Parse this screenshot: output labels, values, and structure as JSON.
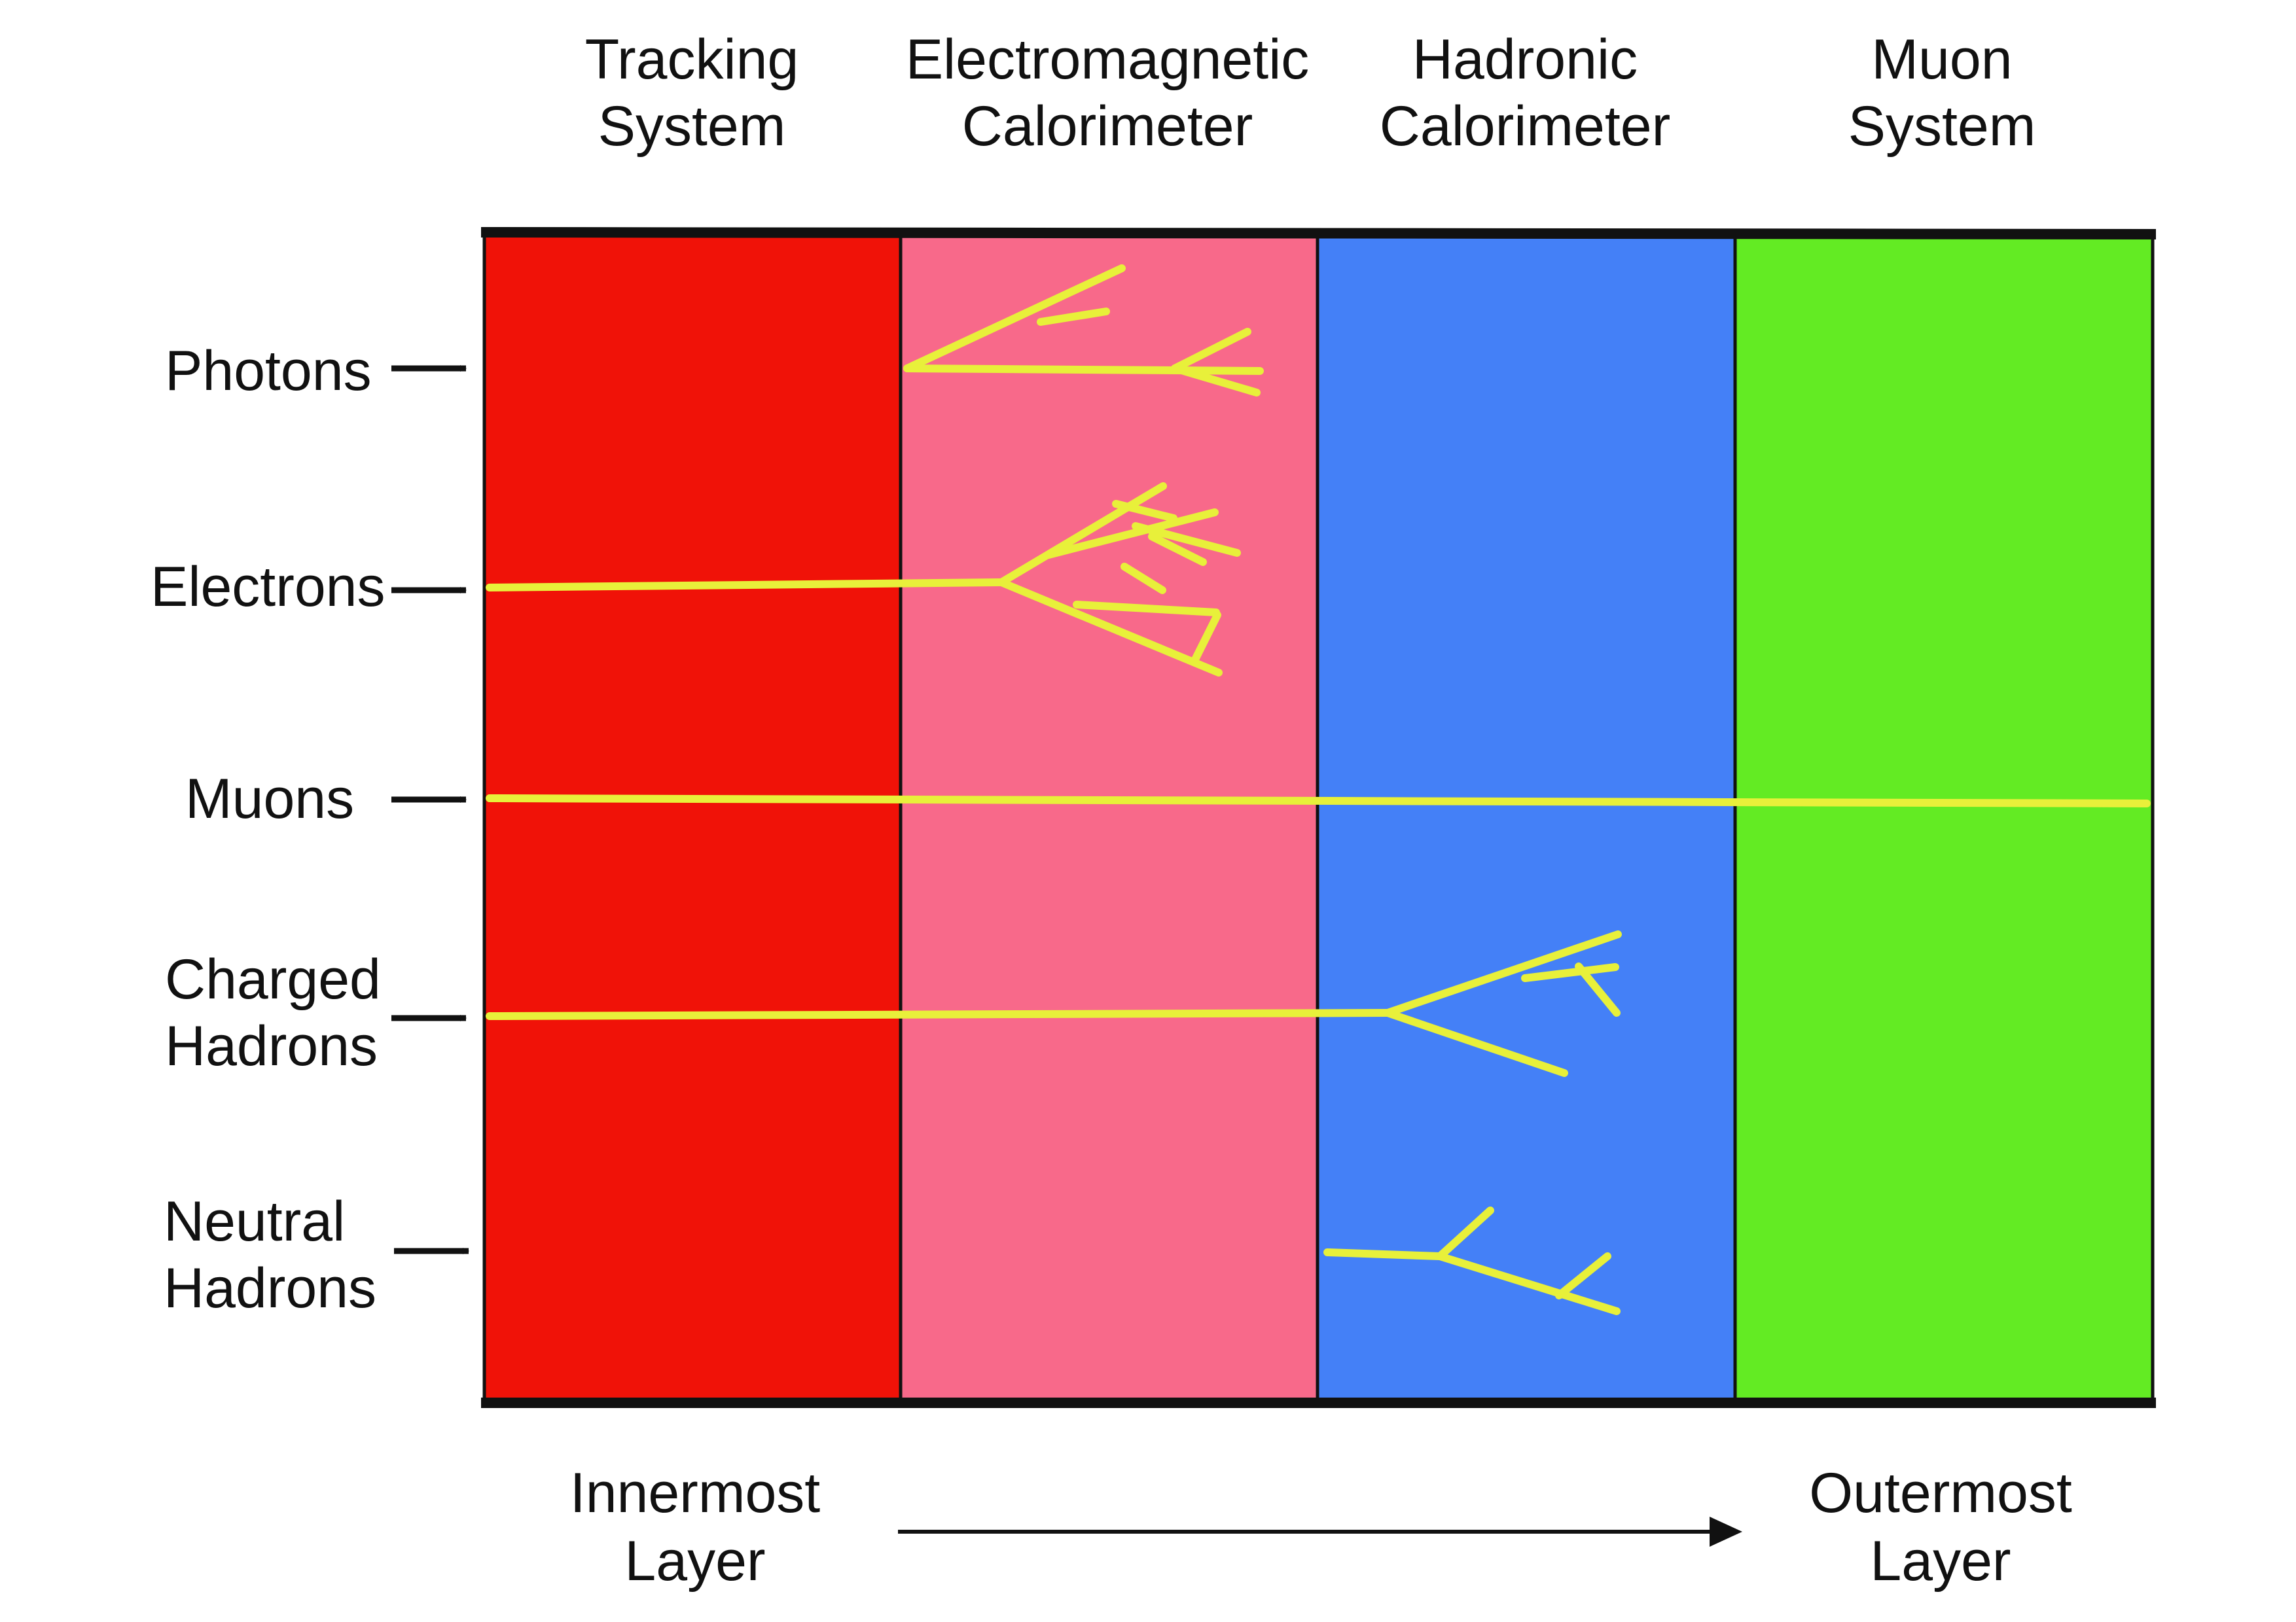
{
  "layers": [
    {
      "line1": "Tracking",
      "line2": "System",
      "color": "#F01208"
    },
    {
      "line1": "Electromagnetic",
      "line2": "Calorimeter",
      "color": "#F8698A"
    },
    {
      "line1": "Hadronic",
      "line2": "Calorimeter",
      "color": "#4480F7"
    },
    {
      "line1": "Muon",
      "line2": "System",
      "color": "#63EB23"
    }
  ],
  "particles": [
    {
      "line1": "Photons",
      "line2": ""
    },
    {
      "line1": "Electrons",
      "line2": ""
    },
    {
      "line1": "Muons",
      "line2": ""
    },
    {
      "line1": "Charged",
      "line2": "Hadrons"
    },
    {
      "line1": "Neutral",
      "line2": "Hadrons"
    }
  ],
  "axis": {
    "start_line1": "Innermost",
    "start_line2": "Layer",
    "end_line1": "Outermost",
    "end_line2": "Layer"
  },
  "colors": {
    "track": "#E8F03A",
    "border": "#111111",
    "arrow": "#111111"
  }
}
